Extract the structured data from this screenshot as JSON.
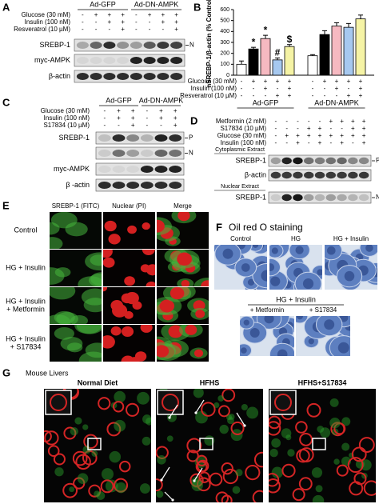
{
  "panels": {
    "a": {
      "label": "A",
      "groups": [
        "Ad-GFP",
        "Ad-DN-AMPK"
      ],
      "conditions": [
        {
          "name": "Glucose (30 mM)",
          "signs": [
            "-",
            "+",
            "+",
            "+",
            "-",
            "+",
            "+",
            "+"
          ]
        },
        {
          "name": "Insulin (100 nM)",
          "signs": [
            "-",
            "-",
            "+",
            "+",
            "-",
            "-",
            "+",
            "+"
          ]
        },
        {
          "name": "Resveratrol (10 µM)",
          "signs": [
            "-",
            "-",
            "-",
            "+",
            "-",
            "-",
            "-",
            "+"
          ]
        }
      ],
      "blots": [
        {
          "name": "SREBP-1",
          "band": "N"
        },
        {
          "name": "myc-AMPK",
          "band": null
        },
        {
          "name": "β-actin",
          "band": null
        }
      ]
    },
    "b": {
      "label": "B",
      "type": "bar",
      "y_label": "nSREBP-1/β-actin (% Control)",
      "ylim": [
        0,
        600
      ],
      "yticks": [
        0,
        100,
        200,
        300,
        400,
        500,
        600
      ],
      "values": [
        100,
        240,
        335,
        140,
        262,
        178,
        372,
        450,
        438,
        515
      ],
      "errors": [
        30,
        15,
        30,
        18,
        18,
        10,
        35,
        30,
        35,
        35
      ],
      "colors": [
        "#ffffff",
        "#000000",
        "#f6b9c1",
        "#a6c8ef",
        "#f5f3a5",
        "#ffffff",
        "#000000",
        "#f6b9c1",
        "#a6c8ef",
        "#f5f3a5"
      ],
      "annotations": [
        null,
        "*",
        "*",
        "#",
        "$",
        null,
        null,
        null,
        null,
        null
      ],
      "groups": [
        "Ad-GFP",
        "Ad-DN-AMPK"
      ],
      "conditions": [
        {
          "name": "Glucose (30 mM)",
          "signs": [
            "-",
            "+",
            "+",
            "+",
            "+",
            "-",
            "+",
            "+",
            "+",
            "+"
          ]
        },
        {
          "name": "Insulin (100 nM)",
          "signs": [
            "-",
            "-",
            "+",
            "-",
            "+",
            "-",
            "-",
            "+",
            "-",
            "+"
          ]
        },
        {
          "name": "Resveratrol (10 µM)",
          "signs": [
            "-",
            "-",
            "-",
            "+",
            "+",
            "-",
            "-",
            "-",
            "+",
            "+"
          ]
        }
      ]
    },
    "c": {
      "label": "C",
      "groups": [
        "Ad-GFP",
        "Ad-DN-AMPK"
      ],
      "conditions": [
        {
          "name": "Glucose (30 mM)",
          "signs": [
            "-",
            "+",
            "+",
            "-",
            "+",
            "+"
          ]
        },
        {
          "name": "Insulin (100 nM)",
          "signs": [
            "-",
            "+",
            "+",
            "-",
            "+",
            "+"
          ]
        },
        {
          "name": "S17834 (10 µM)",
          "signs": [
            "-",
            "-",
            "+",
            "-",
            "-",
            "+"
          ]
        }
      ],
      "blots": [
        {
          "name": "SREBP-1",
          "band": "P"
        },
        {
          "name": null,
          "band": "N"
        },
        {
          "name": "myc-AMPK",
          "band": null
        },
        {
          "name": "β -actin",
          "band": null
        }
      ]
    },
    "d": {
      "label": "D",
      "conditions": [
        {
          "name": "Metformin (2 mM)",
          "signs": [
            "-",
            "-",
            "-",
            "-",
            "-",
            "+",
            "+",
            "+",
            "+"
          ]
        },
        {
          "name": "S17834 (10 µM)",
          "signs": [
            "-",
            "-",
            "-",
            "+",
            "+",
            "-",
            "-",
            "+",
            "+"
          ]
        },
        {
          "name": "Glucose (30 mM)",
          "signs": [
            "-",
            "+",
            "+",
            "+",
            "+",
            "+",
            "+",
            "+",
            "+"
          ]
        },
        {
          "name": "Insulin (100 nM)",
          "signs": [
            "-",
            "-",
            "+",
            "-",
            "+",
            "-",
            "+",
            "-",
            "+"
          ]
        }
      ],
      "sections": [
        {
          "title": "Cytoplasmic Extract",
          "blots": [
            {
              "name": "SREBP-1",
              "band": "P"
            },
            {
              "name": "β-actin",
              "band": null
            }
          ]
        },
        {
          "title": "Nuclear Extract",
          "blots": [
            {
              "name": "SREBP-1",
              "band": "N"
            }
          ]
        }
      ]
    },
    "e": {
      "label": "E",
      "columns": [
        "SREBP-1 (FITC)",
        "Nuclear (PI)",
        "Merge"
      ],
      "rows": [
        [
          "Control"
        ],
        [
          "HG + Insulin"
        ],
        [
          "HG + Insulin",
          "+ Metformin"
        ],
        [
          "HG + Insulin",
          "+ S17834"
        ]
      ]
    },
    "f": {
      "label": "F",
      "title": "Oil red O staining",
      "top": [
        "Control",
        "HG",
        "HG + Insulin"
      ],
      "bottom_title": "HG + Insulin",
      "bottom": [
        "+ Metformin",
        "+ S17834"
      ]
    },
    "g": {
      "label": "G",
      "title": "Mouse Livers",
      "images": [
        "Normal Diet",
        "HFHS",
        "HFHS+S17834"
      ]
    }
  }
}
